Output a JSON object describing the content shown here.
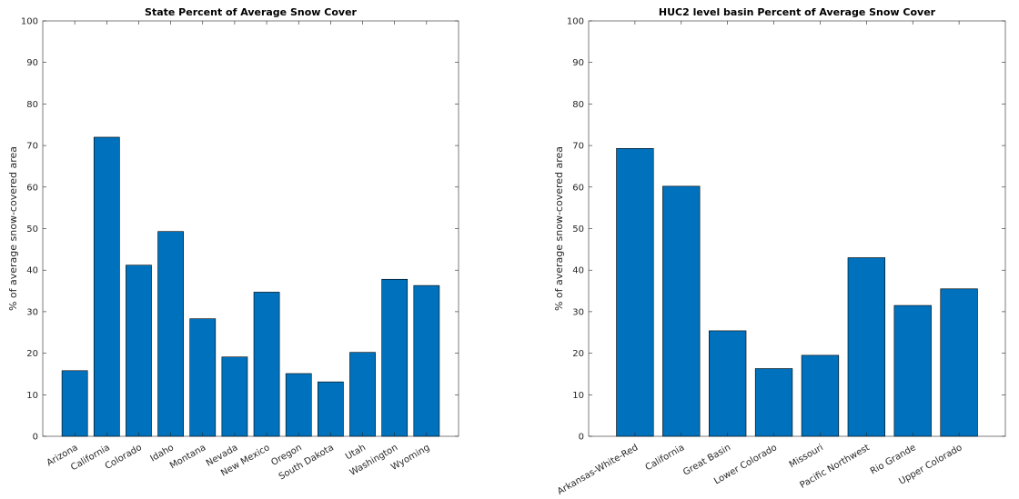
{
  "chart_data": [
    {
      "type": "bar",
      "title": "State Percent of Average Snow Cover",
      "xlabel": "",
      "ylabel": "% of average snow-covered area",
      "ylim": [
        0,
        100
      ],
      "yticks": [
        0,
        10,
        20,
        30,
        40,
        50,
        60,
        70,
        80,
        90,
        100
      ],
      "categories": [
        "Arizona",
        "California",
        "Colorado",
        "Idaho",
        "Montana",
        "Nevada",
        "New Mexico",
        "Oregon",
        "South Dakota",
        "Utah",
        "Washington",
        "Wyoming"
      ],
      "values": [
        15.8,
        72.0,
        41.2,
        49.3,
        28.3,
        19.1,
        34.7,
        15.1,
        13.1,
        20.2,
        37.8,
        36.3
      ],
      "color": "#0072bd",
      "grid": false
    },
    {
      "type": "bar",
      "title": "HUC2 level basin Percent of Average Snow Cover",
      "xlabel": "",
      "ylabel": "% of average snow-covered area",
      "ylim": [
        0,
        100
      ],
      "yticks": [
        0,
        10,
        20,
        30,
        40,
        50,
        60,
        70,
        80,
        90,
        100
      ],
      "categories": [
        "Arkansas-White-Red",
        "California",
        "Great Basin",
        "Lower Colorado",
        "Missouri",
        "Pacific Northwest",
        "Rio Grande",
        "Upper Colorado"
      ],
      "values": [
        69.3,
        60.2,
        25.4,
        16.3,
        19.5,
        43.0,
        31.5,
        35.5
      ],
      "color": "#0072bd",
      "grid": false
    }
  ]
}
